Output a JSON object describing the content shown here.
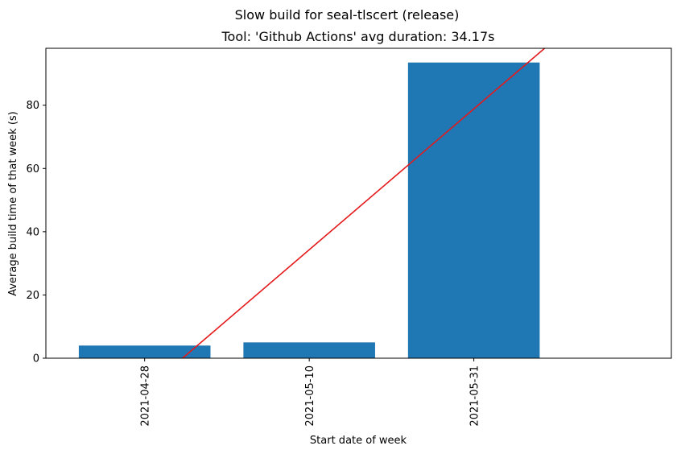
{
  "chart_data": {
    "type": "bar",
    "suptitle": "Slow build for seal-tlscert (release)",
    "title": "Tool: 'Github Actions' avg duration: 34.17s",
    "xlabel": "Start date of week",
    "ylabel": "Average build time of that week (s)",
    "categories": [
      "2021-04-28",
      "2021-05-10",
      "2021-05-31"
    ],
    "values": [
      4.0,
      5.0,
      93.5
    ],
    "bar_color": "#1f77b4",
    "trend_line": {
      "color": "#e41a1c",
      "points": [
        [
          0.23,
          0
        ],
        [
          2.43,
          98
        ]
      ]
    },
    "ylim": [
      0,
      98
    ],
    "xlim": [
      -0.6,
      3.2
    ],
    "yticks": [
      "0",
      "20",
      "40",
      "60",
      "80"
    ],
    "grid": false,
    "legend": "none"
  }
}
